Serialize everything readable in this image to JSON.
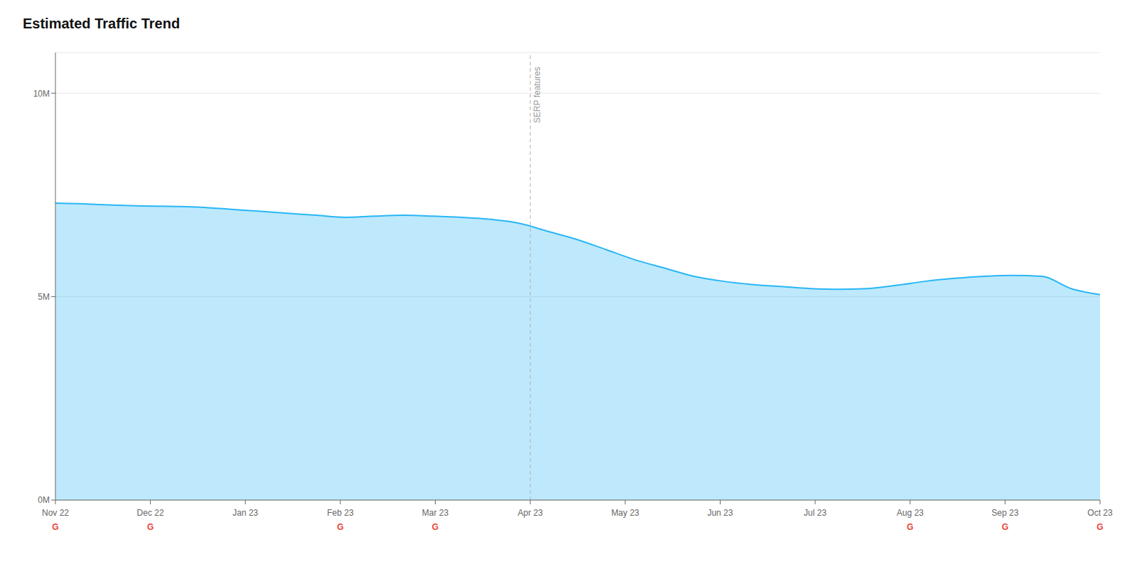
{
  "chart_data": {
    "type": "area",
    "title": "Estimated Traffic Trend",
    "x": [
      0,
      1,
      2,
      3,
      4,
      5,
      6,
      7,
      8,
      9,
      10,
      11,
      12,
      13,
      14,
      15,
      16,
      17,
      18,
      19,
      20,
      21,
      22,
      23,
      24,
      25,
      26,
      27,
      28,
      29,
      30,
      31,
      32,
      33,
      34,
      35,
      36
    ],
    "values": [
      7300000,
      7280000,
      7250000,
      7230000,
      7220000,
      7200000,
      7150000,
      7100000,
      7050000,
      7000000,
      6950000,
      6980000,
      7000000,
      6980000,
      6950000,
      6900000,
      6800000,
      6600000,
      6400000,
      6150000,
      5900000,
      5700000,
      5500000,
      5380000,
      5300000,
      5250000,
      5200000,
      5180000,
      5200000,
      5280000,
      5380000,
      5450000,
      5500000,
      5520000,
      5500000,
      5200000,
      5050000
    ],
    "color": "#29b6f6",
    "xlim": [
      0,
      36
    ],
    "xticks": [
      {
        "value": 0,
        "label": "Nov 22"
      },
      {
        "value": 3.2727272727,
        "label": "Dec 22"
      },
      {
        "value": 6.5454545455,
        "label": "Jan 23"
      },
      {
        "value": 9.8181818182,
        "label": "Feb 23"
      },
      {
        "value": 13.0909090909,
        "label": "Mar 23"
      },
      {
        "value": 16.3636363636,
        "label": "Apr 23"
      },
      {
        "value": 19.6363636364,
        "label": "May 23"
      },
      {
        "value": 22.9090909091,
        "label": "Jun 23"
      },
      {
        "value": 26.1818181818,
        "label": "Jul 23"
      },
      {
        "value": 29.4545454545,
        "label": "Aug 23"
      },
      {
        "value": 32.7272727273,
        "label": "Sep 23"
      },
      {
        "value": 36,
        "label": "Oct 23"
      }
    ],
    "ylim": [
      0,
      11000000
    ],
    "yticks": [
      {
        "value": 0,
        "label": "0M"
      },
      {
        "value": 5000000,
        "label": "5M"
      },
      {
        "value": 10000000,
        "label": "10M"
      }
    ],
    "grid": true,
    "annotations": [
      {
        "text": "SERP features",
        "x": 16.3636363636
      },
      {
        "text": "G",
        "x": 0,
        "color": "#EA4335"
      },
      {
        "text": "G",
        "x": 3.2727272727,
        "color": "#EA4335"
      },
      {
        "text": "G",
        "x": 9.8181818182,
        "color": "#EA4335"
      },
      {
        "text": "G",
        "x": 13.0909090909,
        "color": "#EA4335"
      },
      {
        "text": "G",
        "x": 29.4545454545,
        "color": "#EA4335"
      },
      {
        "text": "G",
        "x": 32.7272727273,
        "color": "#EA4335"
      },
      {
        "text": "G",
        "x": 36,
        "color": "#EA4335"
      }
    ]
  }
}
